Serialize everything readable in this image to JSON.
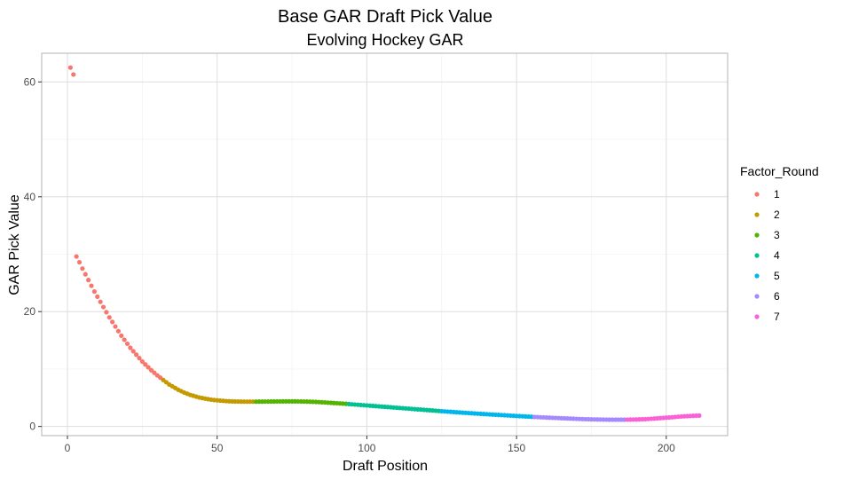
{
  "chart_data": {
    "type": "scatter",
    "title": "Base GAR Draft Pick Value",
    "subtitle": "Evolving Hockey GAR",
    "xlabel": "Draft Position",
    "ylabel": "GAR Pick Value",
    "xlim": [
      -8.6,
      220.5
    ],
    "ylim": [
      -1.6,
      65
    ],
    "x_ticks": [
      0,
      50,
      100,
      150,
      200
    ],
    "y_ticks": [
      0,
      20,
      40,
      60
    ],
    "grid": true,
    "legend": {
      "title": "Factor_Round",
      "placement": "right",
      "entries": [
        {
          "label": "1",
          "color": "#F8766D"
        },
        {
          "label": "2",
          "color": "#C49A00"
        },
        {
          "label": "3",
          "color": "#53B400"
        },
        {
          "label": "4",
          "color": "#00C094"
        },
        {
          "label": "5",
          "color": "#00B6EB"
        },
        {
          "label": "6",
          "color": "#A58AFF"
        },
        {
          "label": "7",
          "color": "#FB61D7"
        }
      ]
    },
    "series": [
      {
        "name": "1",
        "color": "#F8766D",
        "points": [
          [
            1,
            62.5
          ],
          [
            2,
            61.3
          ],
          [
            3,
            29.6
          ],
          [
            4,
            28.6
          ],
          [
            5,
            27.5
          ],
          [
            6,
            26.5
          ],
          [
            7,
            25.5
          ],
          [
            8,
            24.5
          ],
          [
            9,
            23.5
          ],
          [
            10,
            22.6
          ],
          [
            11,
            21.7
          ],
          [
            12,
            20.8
          ],
          [
            13,
            19.9
          ],
          [
            14,
            19.0
          ],
          [
            15,
            18.2
          ],
          [
            16,
            17.4
          ],
          [
            17,
            16.6
          ],
          [
            18,
            15.8
          ],
          [
            19,
            15.1
          ],
          [
            20,
            14.4
          ],
          [
            21,
            13.7
          ],
          [
            22,
            13.1
          ],
          [
            23,
            12.5
          ],
          [
            24,
            11.9
          ],
          [
            25,
            11.3
          ],
          [
            26,
            10.8
          ],
          [
            27,
            10.3
          ],
          [
            28,
            9.8
          ],
          [
            29,
            9.35
          ],
          [
            30,
            8.9
          ],
          [
            31,
            8.5
          ]
        ]
      },
      {
        "name": "2",
        "color": "#C49A00",
        "points": [
          [
            32,
            8.1
          ],
          [
            33,
            7.7
          ],
          [
            34,
            7.3
          ],
          [
            35,
            7.0
          ],
          [
            36,
            6.7
          ],
          [
            37,
            6.4
          ],
          [
            38,
            6.15
          ],
          [
            39,
            5.9
          ],
          [
            40,
            5.7
          ],
          [
            41,
            5.5
          ],
          [
            42,
            5.35
          ],
          [
            43,
            5.2
          ],
          [
            44,
            5.05
          ],
          [
            45,
            4.95
          ],
          [
            46,
            4.85
          ],
          [
            47,
            4.75
          ],
          [
            48,
            4.67
          ],
          [
            49,
            4.6
          ],
          [
            50,
            4.55
          ],
          [
            51,
            4.5
          ],
          [
            52,
            4.46
          ],
          [
            53,
            4.42
          ],
          [
            54,
            4.39
          ],
          [
            55,
            4.37
          ],
          [
            56,
            4.35
          ],
          [
            57,
            4.34
          ],
          [
            58,
            4.33
          ],
          [
            59,
            4.32
          ],
          [
            60,
            4.32
          ],
          [
            61,
            4.32
          ],
          [
            62,
            4.32
          ]
        ]
      },
      {
        "name": "3",
        "color": "#53B400",
        "points": [
          [
            63,
            4.32
          ],
          [
            64,
            4.33
          ],
          [
            65,
            4.33
          ],
          [
            66,
            4.34
          ],
          [
            67,
            4.34
          ],
          [
            68,
            4.35
          ],
          [
            69,
            4.35
          ],
          [
            70,
            4.36
          ],
          [
            71,
            4.36
          ],
          [
            72,
            4.37
          ],
          [
            73,
            4.37
          ],
          [
            74,
            4.37
          ],
          [
            75,
            4.37
          ],
          [
            76,
            4.37
          ],
          [
            77,
            4.36
          ],
          [
            78,
            4.35
          ],
          [
            79,
            4.34
          ],
          [
            80,
            4.33
          ],
          [
            81,
            4.31
          ],
          [
            82,
            4.29
          ],
          [
            83,
            4.27
          ],
          [
            84,
            4.24
          ],
          [
            85,
            4.21
          ],
          [
            86,
            4.18
          ],
          [
            87,
            4.15
          ],
          [
            88,
            4.12
          ],
          [
            89,
            4.08
          ],
          [
            90,
            4.05
          ],
          [
            91,
            4.01
          ],
          [
            92,
            3.98
          ],
          [
            93,
            3.94
          ]
        ]
      },
      {
        "name": "4",
        "color": "#00C094",
        "points": [
          [
            94,
            3.9
          ],
          [
            95,
            3.86
          ],
          [
            96,
            3.82
          ],
          [
            97,
            3.78
          ],
          [
            98,
            3.74
          ],
          [
            99,
            3.7
          ],
          [
            100,
            3.66
          ],
          [
            101,
            3.62
          ],
          [
            102,
            3.58
          ],
          [
            103,
            3.54
          ],
          [
            104,
            3.5
          ],
          [
            105,
            3.46
          ],
          [
            106,
            3.42
          ],
          [
            107,
            3.38
          ],
          [
            108,
            3.34
          ],
          [
            109,
            3.3
          ],
          [
            110,
            3.26
          ],
          [
            111,
            3.22
          ],
          [
            112,
            3.18
          ],
          [
            113,
            3.14
          ],
          [
            114,
            3.1
          ],
          [
            115,
            3.06
          ],
          [
            116,
            3.02
          ],
          [
            117,
            2.98
          ],
          [
            118,
            2.94
          ],
          [
            119,
            2.9
          ],
          [
            120,
            2.86
          ],
          [
            121,
            2.82
          ],
          [
            122,
            2.78
          ],
          [
            123,
            2.74
          ],
          [
            124,
            2.7
          ]
        ]
      },
      {
        "name": "5",
        "color": "#00B6EB",
        "points": [
          [
            125,
            2.66
          ],
          [
            126,
            2.62
          ],
          [
            127,
            2.58
          ],
          [
            128,
            2.55
          ],
          [
            129,
            2.51
          ],
          [
            130,
            2.47
          ],
          [
            131,
            2.44
          ],
          [
            132,
            2.4
          ],
          [
            133,
            2.37
          ],
          [
            134,
            2.33
          ],
          [
            135,
            2.3
          ],
          [
            136,
            2.26
          ],
          [
            137,
            2.23
          ],
          [
            138,
            2.2
          ],
          [
            139,
            2.17
          ],
          [
            140,
            2.14
          ],
          [
            141,
            2.1
          ],
          [
            142,
            2.07
          ],
          [
            143,
            2.04
          ],
          [
            144,
            2.01
          ],
          [
            145,
            1.98
          ],
          [
            146,
            1.95
          ],
          [
            147,
            1.92
          ],
          [
            148,
            1.89
          ],
          [
            149,
            1.86
          ],
          [
            150,
            1.83
          ],
          [
            151,
            1.8
          ],
          [
            152,
            1.77
          ],
          [
            153,
            1.74
          ],
          [
            154,
            1.71
          ],
          [
            155,
            1.68
          ]
        ]
      },
      {
        "name": "6",
        "color": "#A58AFF",
        "points": [
          [
            156,
            1.65
          ],
          [
            157,
            1.63
          ],
          [
            158,
            1.6
          ],
          [
            159,
            1.58
          ],
          [
            160,
            1.55
          ],
          [
            161,
            1.53
          ],
          [
            162,
            1.5
          ],
          [
            163,
            1.48
          ],
          [
            164,
            1.46
          ],
          [
            165,
            1.43
          ],
          [
            166,
            1.41
          ],
          [
            167,
            1.39
          ],
          [
            168,
            1.37
          ],
          [
            169,
            1.35
          ],
          [
            170,
            1.33
          ],
          [
            171,
            1.31
          ],
          [
            172,
            1.29
          ],
          [
            173,
            1.27
          ],
          [
            174,
            1.26
          ],
          [
            175,
            1.24
          ],
          [
            176,
            1.23
          ],
          [
            177,
            1.22
          ],
          [
            178,
            1.21
          ],
          [
            179,
            1.2
          ],
          [
            180,
            1.19
          ],
          [
            181,
            1.18
          ],
          [
            182,
            1.18
          ],
          [
            183,
            1.18
          ],
          [
            184,
            1.18
          ],
          [
            185,
            1.18
          ],
          [
            186,
            1.18
          ]
        ]
      },
      {
        "name": "7",
        "color": "#FB61D7",
        "points": [
          [
            187,
            1.19
          ],
          [
            188,
            1.2
          ],
          [
            189,
            1.21
          ],
          [
            190,
            1.22
          ],
          [
            191,
            1.24
          ],
          [
            192,
            1.26
          ],
          [
            193,
            1.28
          ],
          [
            194,
            1.31
          ],
          [
            195,
            1.34
          ],
          [
            196,
            1.37
          ],
          [
            197,
            1.41
          ],
          [
            198,
            1.45
          ],
          [
            199,
            1.49
          ],
          [
            200,
            1.53
          ],
          [
            201,
            1.57
          ],
          [
            202,
            1.61
          ],
          [
            203,
            1.65
          ],
          [
            204,
            1.69
          ],
          [
            205,
            1.73
          ],
          [
            206,
            1.77
          ],
          [
            207,
            1.8
          ],
          [
            208,
            1.83
          ],
          [
            209,
            1.86
          ],
          [
            210,
            1.88
          ],
          [
            211,
            1.9
          ]
        ]
      }
    ]
  }
}
